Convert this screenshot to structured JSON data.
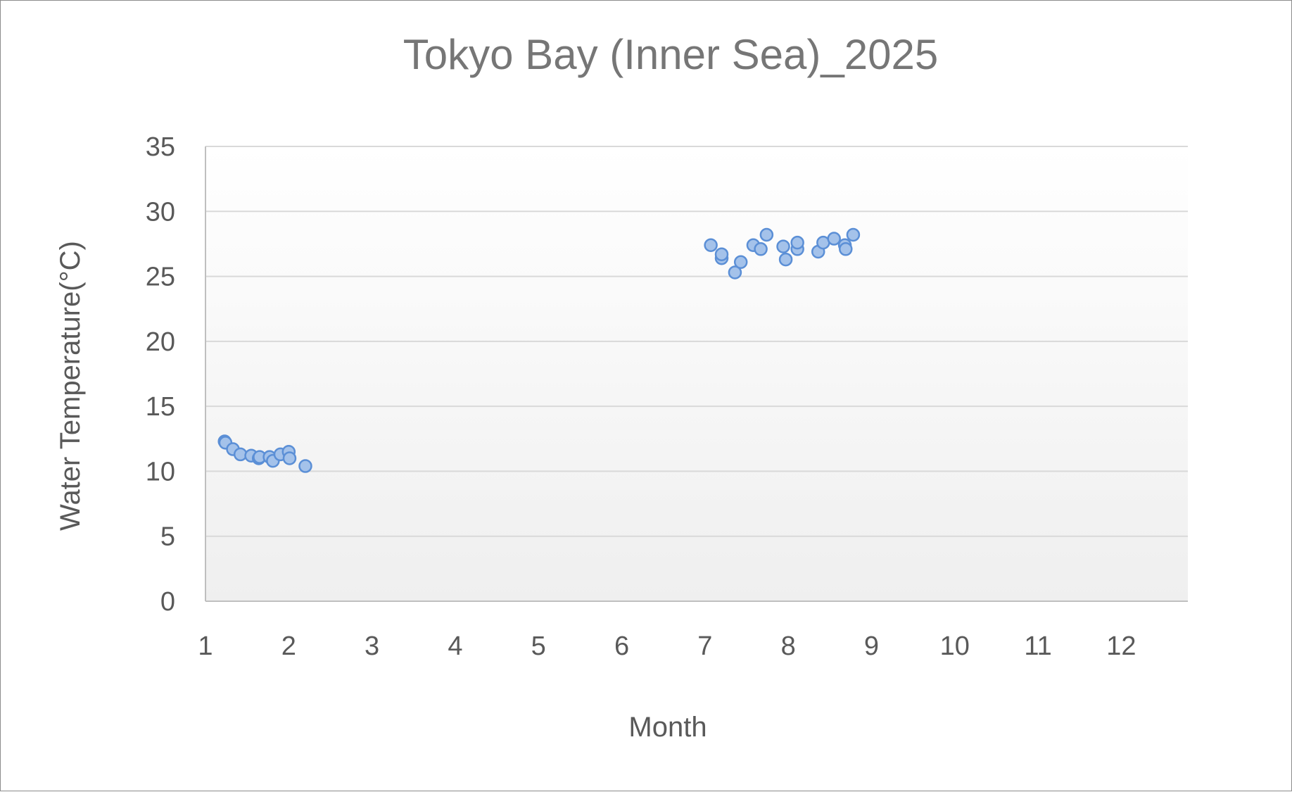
{
  "chart_data": {
    "type": "scatter",
    "title": "Tokyo Bay (Inner Sea)_2025",
    "xlabel": "Month",
    "ylabel": "Water Temperature(°C)",
    "xlim": [
      1,
      12.8
    ],
    "ylim": [
      0,
      35
    ],
    "xticks": [
      1,
      2,
      3,
      4,
      5,
      6,
      7,
      8,
      9,
      10,
      11,
      12
    ],
    "yticks": [
      0,
      5,
      10,
      15,
      20,
      25,
      30,
      35
    ],
    "grid": true,
    "legend": "none",
    "colors": {
      "marker_fill": "#a4c2ea",
      "marker_edge": "#5b8fd6",
      "plot_bg_top": "#ffffff",
      "plot_bg_bottom": "#efefef"
    },
    "x": [
      1.23,
      1.24,
      1.33,
      1.42,
      1.55,
      1.64,
      1.65,
      1.77,
      1.81,
      1.9,
      2.0,
      2.01,
      2.2,
      7.07,
      7.2,
      7.2,
      7.36,
      7.43,
      7.58,
      7.67,
      7.74,
      7.94,
      7.97,
      8.11,
      8.11,
      8.36,
      8.42,
      8.55,
      8.68,
      8.69,
      8.78
    ],
    "y": [
      12.3,
      12.2,
      11.7,
      11.3,
      11.2,
      11.0,
      11.1,
      11.1,
      10.8,
      11.3,
      11.5,
      11.0,
      10.4,
      27.4,
      26.4,
      26.7,
      25.3,
      26.1,
      27.4,
      27.1,
      28.2,
      27.3,
      26.3,
      27.1,
      27.6,
      26.9,
      27.6,
      27.9,
      27.4,
      27.1,
      28.2
    ]
  }
}
